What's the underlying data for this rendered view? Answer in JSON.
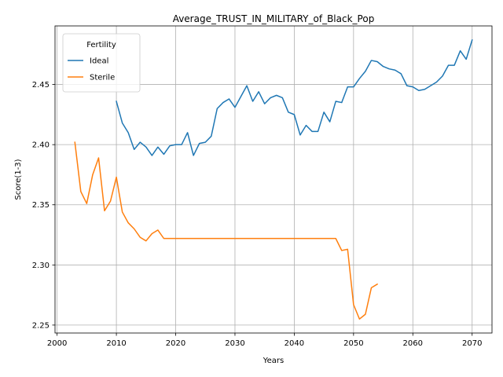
{
  "chart_data": {
    "type": "line",
    "title": "Average_TRUST_IN_MILITARY_of_Black_Pop",
    "xlabel": "Years",
    "ylabel": "Score(1-3)",
    "xlim": [
      1999.65,
      2073.35
    ],
    "ylim": [
      2.2434,
      2.4987
    ],
    "x_ticks": [
      2000,
      2010,
      2020,
      2030,
      2040,
      2050,
      2060,
      2070
    ],
    "y_ticks": [
      2.25,
      2.3,
      2.35,
      2.4,
      2.45
    ],
    "x_tick_labels": [
      "2000",
      "2010",
      "2020",
      "2030",
      "2040",
      "2050",
      "2060",
      "2070"
    ],
    "y_tick_labels": [
      "2.25",
      "2.30",
      "2.35",
      "2.40",
      "2.45"
    ],
    "grid": true,
    "legend": {
      "title": "Fertility",
      "placement": "top-left"
    },
    "series": [
      {
        "name": "Ideal",
        "color": "#1f77b4",
        "x": [
          2010,
          2011,
          2012,
          2013,
          2014,
          2015,
          2016,
          2017,
          2018,
          2019,
          2020,
          2021,
          2022,
          2023,
          2024,
          2025,
          2026,
          2027,
          2028,
          2029,
          2030,
          2031,
          2032,
          2033,
          2034,
          2035,
          2036,
          2037,
          2038,
          2039,
          2040,
          2041,
          2042,
          2043,
          2044,
          2045,
          2046,
          2047,
          2048,
          2049,
          2050,
          2051,
          2052,
          2053,
          2054,
          2055,
          2056,
          2057,
          2058,
          2059,
          2060,
          2061,
          2062,
          2063,
          2064,
          2065,
          2066,
          2067,
          2068,
          2069,
          2070
        ],
        "y": [
          2.436,
          2.418,
          2.41,
          2.396,
          2.402,
          2.398,
          2.391,
          2.398,
          2.392,
          2.399,
          2.4,
          2.4,
          2.41,
          2.391,
          2.401,
          2.402,
          2.407,
          2.43,
          2.435,
          2.438,
          2.431,
          2.44,
          2.449,
          2.436,
          2.444,
          2.434,
          2.439,
          2.441,
          2.439,
          2.427,
          2.425,
          2.408,
          2.416,
          2.411,
          2.411,
          2.427,
          2.419,
          2.436,
          2.435,
          2.448,
          2.448,
          2.455,
          2.461,
          2.47,
          2.469,
          2.465,
          2.463,
          2.462,
          2.459,
          2.449,
          2.448,
          2.445,
          2.446,
          2.449,
          2.452,
          2.457,
          2.466,
          2.466,
          2.478,
          2.471,
          2.487
        ]
      },
      {
        "name": "Sterile",
        "color": "#ff7f0e",
        "x": [
          2003,
          2004,
          2005,
          2006,
          2007,
          2008,
          2009,
          2010,
          2011,
          2012,
          2013,
          2014,
          2015,
          2016,
          2017,
          2018,
          2019,
          2020,
          2021,
          2022,
          2023,
          2024,
          2025,
          2026,
          2027,
          2028,
          2029,
          2030,
          2031,
          2032,
          2033,
          2034,
          2035,
          2036,
          2037,
          2038,
          2039,
          2040,
          2041,
          2042,
          2043,
          2044,
          2045,
          2046,
          2047,
          2048,
          2049,
          2050,
          2051,
          2052,
          2053,
          2054
        ],
        "y": [
          2.402,
          2.361,
          2.351,
          2.375,
          2.389,
          2.345,
          2.353,
          2.373,
          2.344,
          2.335,
          2.33,
          2.323,
          2.32,
          2.326,
          2.329,
          2.322,
          2.322,
          2.322,
          2.322,
          2.322,
          2.322,
          2.322,
          2.322,
          2.322,
          2.322,
          2.322,
          2.322,
          2.322,
          2.322,
          2.322,
          2.322,
          2.322,
          2.322,
          2.322,
          2.322,
          2.322,
          2.322,
          2.322,
          2.322,
          2.322,
          2.322,
          2.322,
          2.322,
          2.322,
          2.322,
          2.312,
          2.313,
          2.267,
          2.255,
          2.259,
          2.281,
          2.284
        ]
      }
    ]
  }
}
